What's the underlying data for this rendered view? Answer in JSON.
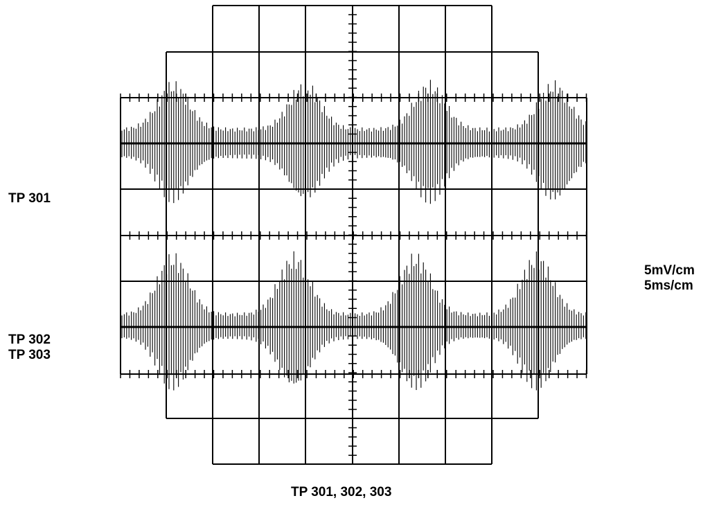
{
  "labels": {
    "trace_upper": "TP 301",
    "trace_lower_1": "TP 302",
    "trace_lower_2": "TP 303",
    "vertical_scale": "5mV/cm",
    "time_scale": "5ms/cm",
    "caption": "TP 301, 302, 303"
  },
  "colors": {
    "ink": "#000000",
    "background": "#ffffff"
  }
}
